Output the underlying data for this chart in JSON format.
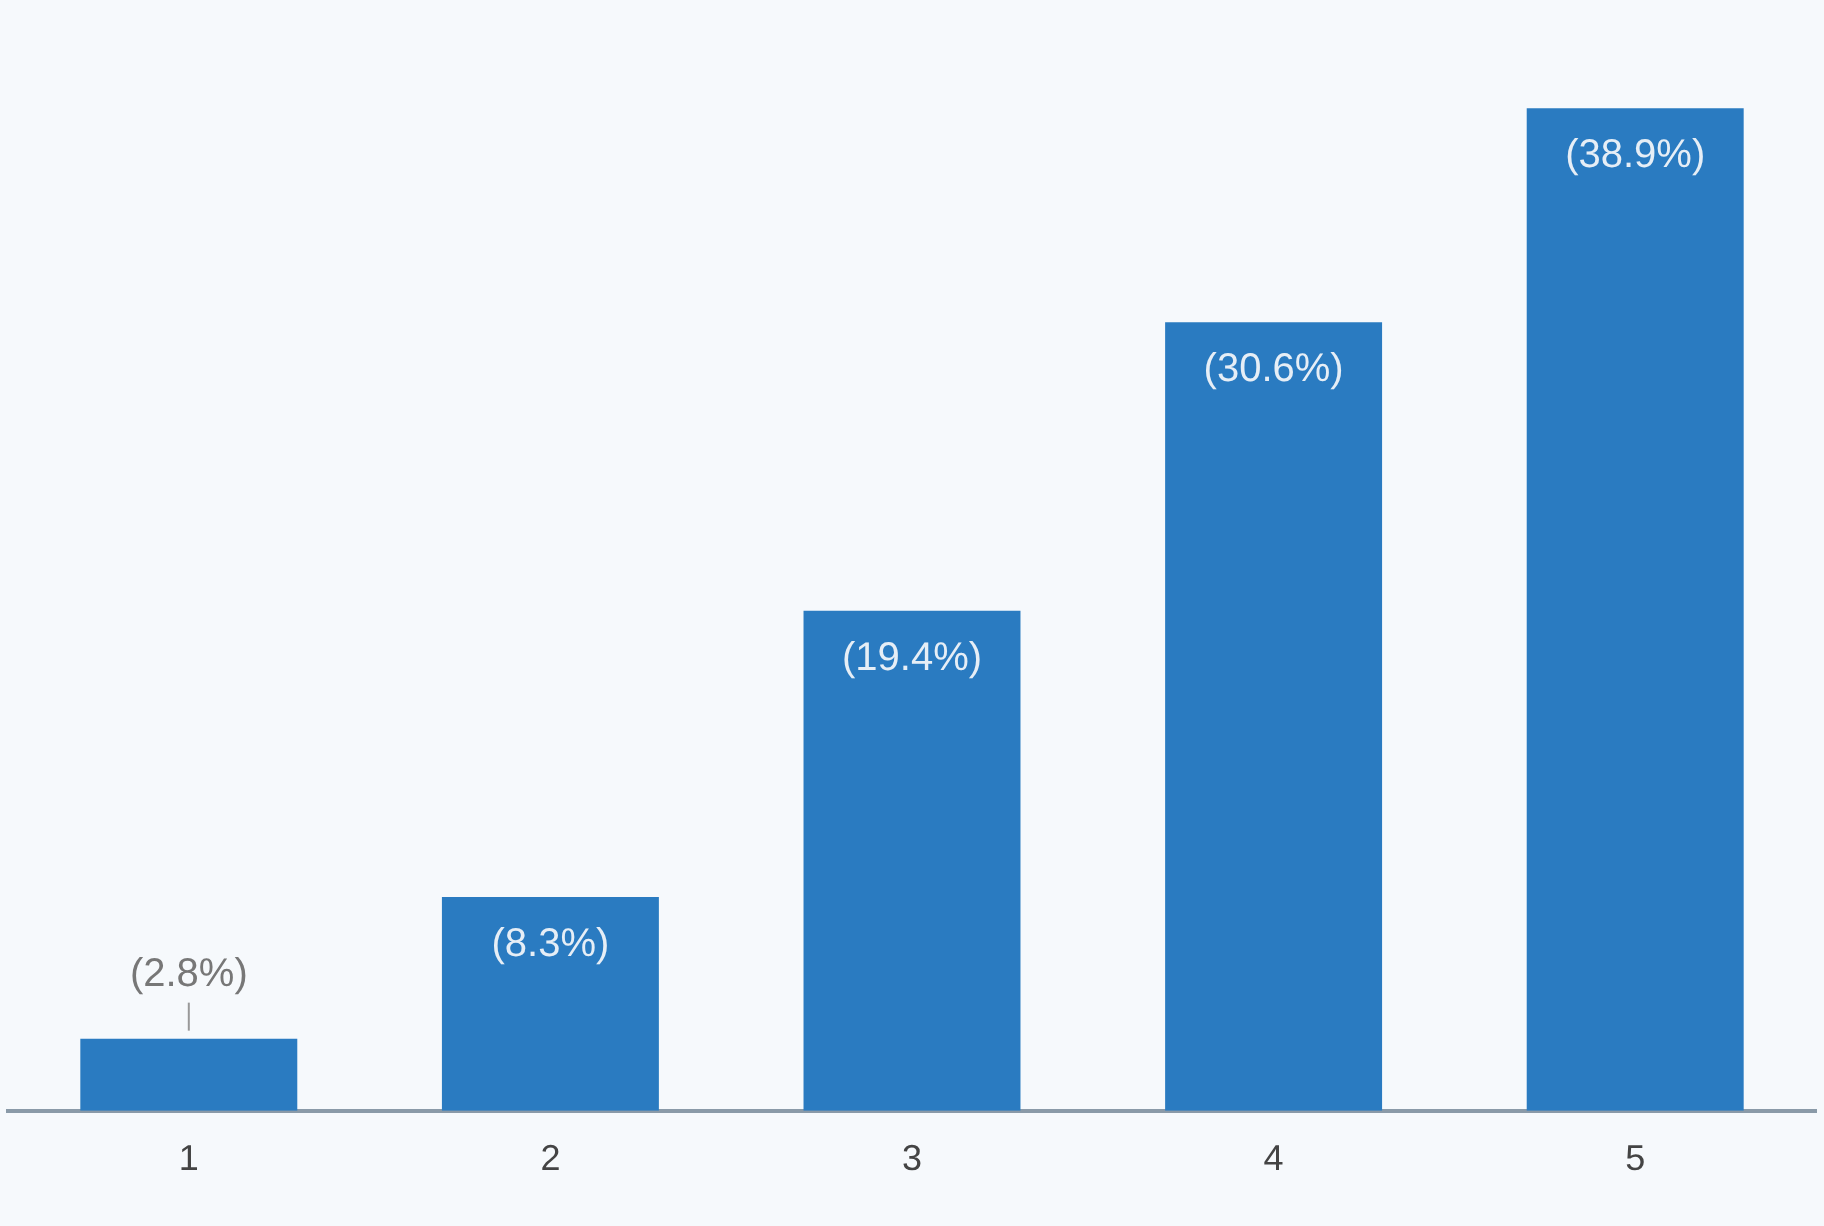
{
  "chart_data": {
    "type": "bar",
    "categories": [
      "1",
      "2",
      "3",
      "4",
      "5"
    ],
    "values": [
      2.8,
      8.3,
      19.4,
      30.6,
      38.9
    ],
    "value_labels": [
      "(2.8%)",
      "(8.3%)",
      "(19.4%)",
      "(30.6%)",
      "(38.9%)"
    ],
    "color": "#2a7bc1",
    "grid": false,
    "legend": false,
    "tick_labels": "x"
  }
}
